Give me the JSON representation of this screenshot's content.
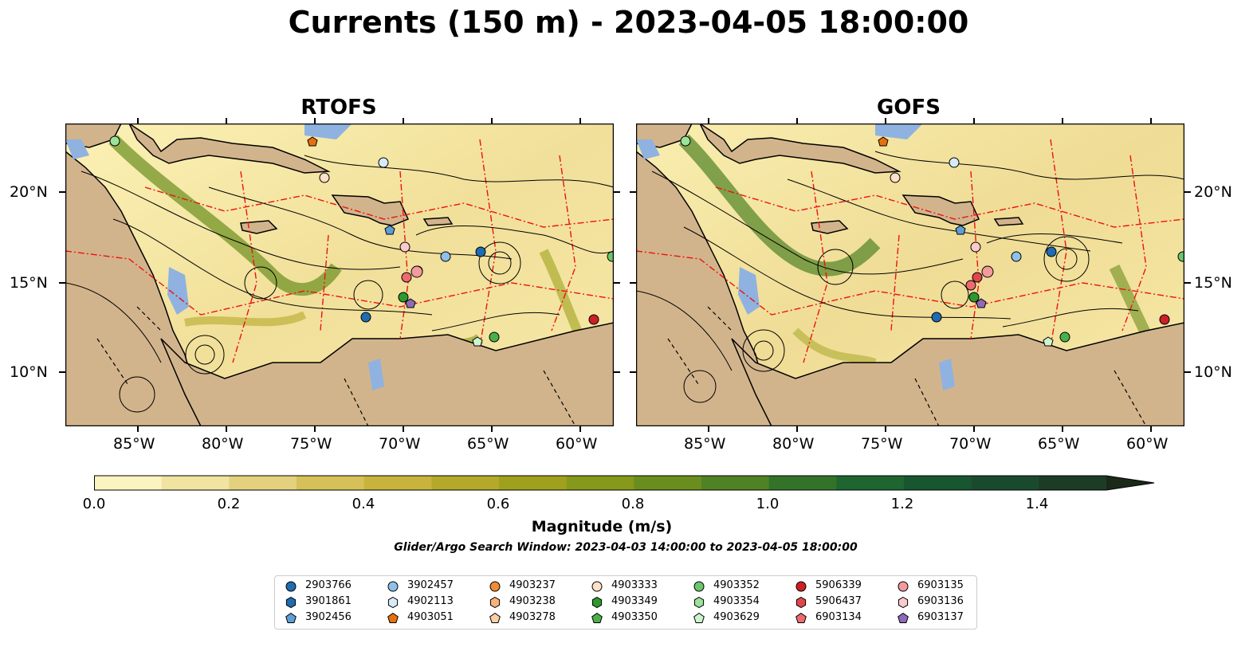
{
  "title": "Currents (150 m) - 2023-04-05 18:00:00",
  "panels": [
    {
      "title": "RTOFS"
    },
    {
      "title": "GOFS"
    }
  ],
  "lon_labels": [
    "85°W",
    "80°W",
    "75°W",
    "70°W",
    "65°W",
    "60°W"
  ],
  "lat_labels": [
    "20°N",
    "15°N",
    "10°N"
  ],
  "map_extent": {
    "lon": [
      -89,
      -58
    ],
    "lat": [
      7,
      24
    ]
  },
  "colors": {
    "land": "#d2b48c",
    "shallow_water": "#8fb2e0",
    "ocean_low": "#fbf4c0",
    "eez": "#ee1111"
  },
  "colorbar": {
    "label": "Magnitude (m/s)",
    "tick_labels": [
      "0.0",
      "0.2",
      "0.4",
      "0.6",
      "0.8",
      "1.0",
      "1.2",
      "1.4"
    ],
    "range": [
      0,
      1.5
    ],
    "extend": "max",
    "levels": [
      0.0,
      0.1,
      0.2,
      0.3,
      0.4,
      0.5,
      0.6,
      0.7,
      0.8,
      0.9,
      1.0,
      1.1,
      1.2,
      1.3,
      1.4,
      1.5
    ],
    "colors": [
      "#fbf4c0",
      "#f1e3a0",
      "#e4d17e",
      "#d6c159",
      "#c8b43c",
      "#b5a92a",
      "#9fa11d",
      "#86991a",
      "#6a8e1e",
      "#4f8224",
      "#337329",
      "#1e6530",
      "#175630",
      "#1a4a2e",
      "#1d3c26"
    ],
    "extend_color": "#1b2a18"
  },
  "search_window": "Glider/Argo Search Window: 2023-04-03 14:00:00 to 2023-04-05 18:00:00",
  "legend": [
    {
      "id": "2903766",
      "color": "#1f6cb0",
      "marker": "circle"
    },
    {
      "id": "3901861",
      "color": "#1f6cb0",
      "marker": "hexagon"
    },
    {
      "id": "3902456",
      "color": "#5e9ed6",
      "marker": "pentagon"
    },
    {
      "id": "3902457",
      "color": "#8dc0ea",
      "marker": "circle"
    },
    {
      "id": "4902113",
      "color": "#d6eaf8",
      "marker": "hexagon"
    },
    {
      "id": "4903051",
      "color": "#e6700f",
      "marker": "pentagon"
    },
    {
      "id": "4903237",
      "color": "#f08a34",
      "marker": "circle"
    },
    {
      "id": "4903238",
      "color": "#f7b27a",
      "marker": "hexagon"
    },
    {
      "id": "4903278",
      "color": "#fbcfa6",
      "marker": "pentagon"
    },
    {
      "id": "4903333",
      "color": "#fde2c8",
      "marker": "circle"
    },
    {
      "id": "4903349",
      "color": "#2e9a2e",
      "marker": "hexagon"
    },
    {
      "id": "4903350",
      "color": "#4bb04b",
      "marker": "pentagon"
    },
    {
      "id": "4903352",
      "color": "#6cc66c",
      "marker": "circle"
    },
    {
      "id": "4903354",
      "color": "#9be29b",
      "marker": "hexagon"
    },
    {
      "id": "4903629",
      "color": "#cdf5cd",
      "marker": "pentagon"
    },
    {
      "id": "5906339",
      "color": "#cc2026",
      "marker": "circle"
    },
    {
      "id": "5906437",
      "color": "#e0474c",
      "marker": "hexagon"
    },
    {
      "id": "6903134",
      "color": "#ee6a6e",
      "marker": "pentagon"
    },
    {
      "id": "6903135",
      "color": "#f39a9c",
      "marker": "circle"
    },
    {
      "id": "6903136",
      "color": "#fbcaca",
      "marker": "hexagon"
    },
    {
      "id": "6903137",
      "color": "#8d6bb8",
      "marker": "pentagon"
    }
  ]
}
